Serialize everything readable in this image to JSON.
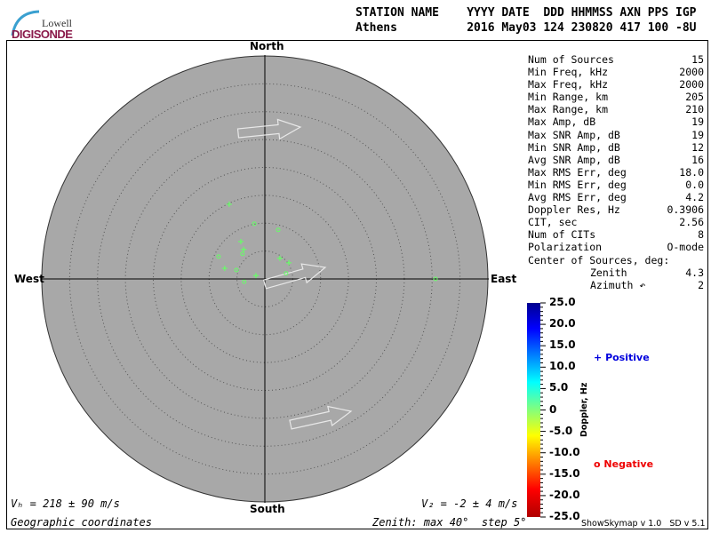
{
  "logo": {
    "line1": "Lowell",
    "line2": "DIGISONDE"
  },
  "header": {
    "labels": "STATION NAME    YYYY DATE  DDD HHMMSS AXN PPS IGP",
    "values": "Athens          2016 May03 124 230820 417 100 -8U"
  },
  "stats": [
    {
      "label": "Num of Sources",
      "value": "15"
    },
    {
      "label": "Min Freq, kHz",
      "value": "2000"
    },
    {
      "label": "Max Freq, kHz",
      "value": "2000"
    },
    {
      "label": "Min Range, km",
      "value": "205"
    },
    {
      "label": "Max Range, km",
      "value": "210"
    },
    {
      "label": "Max Amp, dB",
      "value": "19"
    },
    {
      "label": "Max SNR Amp, dB",
      "value": "19"
    },
    {
      "label": "Min SNR Amp, dB",
      "value": "12"
    },
    {
      "label": "Avg SNR Amp, dB",
      "value": "16"
    },
    {
      "label": "Max RMS Err, deg",
      "value": "18.0"
    },
    {
      "label": "Min RMS Err, deg",
      "value": "0.0"
    },
    {
      "label": "Avg RMS Err, deg",
      "value": "4.2"
    },
    {
      "label": "Doppler Res, Hz",
      "value": "0.3906"
    },
    {
      "label": "CIT, sec",
      "value": "2.56"
    },
    {
      "label": "Num of CITs",
      "value": "8"
    },
    {
      "label": "Polarization",
      "value": "O-mode"
    }
  ],
  "center": {
    "title": "Center of Sources, deg:",
    "zenith_label": "Zenith",
    "zenith": "4.3",
    "azimuth_label": "Azimuth ↶",
    "azimuth": "2"
  },
  "chart_data": {
    "type": "scatter",
    "projection": "polar skymap",
    "directions": {
      "north": "North",
      "south": "South",
      "east": "East",
      "west": "West"
    },
    "zenith_max": 40,
    "zenith_step": 5,
    "grid": "dotted rings",
    "background": "#a8a8a8",
    "point_units": "zenith degrees east / north",
    "positive": [
      [
        -6.4,
        13.4
      ],
      [
        -4.3,
        6.7
      ],
      [
        -3.8,
        5.3
      ],
      [
        -7.2,
        1.9
      ],
      [
        -1.6,
        0.6
      ],
      [
        2.7,
        3.7
      ],
      [
        4.3,
        2.9
      ]
    ],
    "negative": [
      [
        -1.9,
        9.9
      ],
      [
        2.4,
        8.8
      ],
      [
        -4.0,
        4.5
      ],
      [
        -8.3,
        4.0
      ],
      [
        -5.1,
        1.6
      ],
      [
        -3.7,
        -0.5
      ],
      [
        3.8,
        1.0
      ],
      [
        30.6,
        0.0
      ]
    ],
    "point_color": "#66ff66",
    "colorbar": {
      "label": "Doppler, Hz",
      "range": [
        -25,
        25
      ],
      "ticks": [
        "25.0",
        "20.0",
        "15.0",
        "10.0",
        "5.0",
        "0",
        "-5.0",
        "-10.0",
        "-15.0",
        "-20.0",
        "-25.0"
      ],
      "colormap": "jet"
    },
    "legend": {
      "positive": "Positive",
      "negative": "Negative",
      "positive_symbol": "+",
      "negative_symbol": "o",
      "positive_color": "#0000dd",
      "negative_color": "#ee0000"
    }
  },
  "footer": {
    "vh": "Vₕ = 218 ± 90 m/s",
    "vz": "V₂ = -2 ± 4 m/s",
    "coords": "Geographic coordinates",
    "zenith": "Zenith: max 40°  step 5°",
    "version": "ShowSkymap v 1.0   SD v 5.1"
  }
}
